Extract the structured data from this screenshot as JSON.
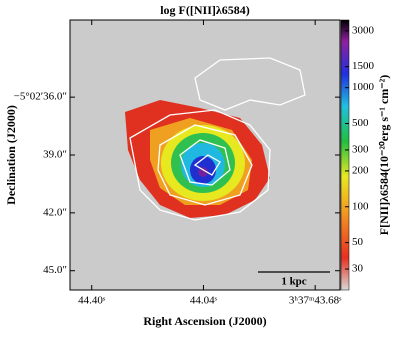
{
  "chart_data": {
    "type": "map",
    "title": "log F([NII]λ6584)",
    "xlabel": "Right Ascension (J2000)",
    "ylabel": "Declination (J2000)",
    "xlim": [
      44.47,
      43.6
    ],
    "xticks": [
      {
        "value": 44.4,
        "label": "44.40ˢ"
      },
      {
        "value": 44.04,
        "label": "44.04ˢ"
      },
      {
        "value": 43.68,
        "label": "3ʰ37ᵐ43.68ˢ"
      }
    ],
    "ylim": [
      32.0,
      46.0
    ],
    "yticks": [
      {
        "value": 36.0,
        "label": "−5°02′36.0″"
      },
      {
        "value": 39.0,
        "label": "39.0″"
      },
      {
        "value": 42.0,
        "label": "42.0″"
      },
      {
        "value": 45.0,
        "label": "45.0″"
      }
    ],
    "colorbar": {
      "label": "F[NII]λ6584(10⁻²⁰erg s⁻¹ cm⁻²)",
      "log": true,
      "clim": [
        20,
        3700
      ],
      "ticks": [
        30,
        50,
        100,
        200,
        300,
        500,
        1000,
        1500,
        3000
      ]
    },
    "scalebar": "1 kpc"
  }
}
